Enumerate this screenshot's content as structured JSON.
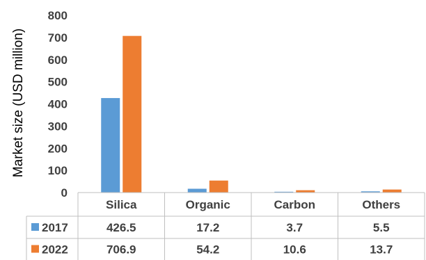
{
  "chart_data": {
    "type": "bar",
    "categories": [
      "Silica",
      "Organic",
      "Carbon",
      "Others"
    ],
    "series": [
      {
        "name": "2017",
        "values": [
          426.5,
          17.2,
          3.7,
          5.5
        ],
        "color": "#5B9BD5"
      },
      {
        "name": "2022",
        "values": [
          706.9,
          54.2,
          10.6,
          13.7
        ],
        "color": "#ED7D31"
      }
    ],
    "y_ticks": [
      "0",
      "100",
      "200",
      "300",
      "400",
      "500",
      "600",
      "700",
      "800"
    ],
    "ylabel": "Market size (USD million)",
    "ylim": [
      0,
      800
    ],
    "table_values": [
      [
        "426.5",
        "17.2",
        "3.7",
        "5.5"
      ],
      [
        "706.9",
        "54.2",
        "10.6",
        "13.7"
      ]
    ],
    "grid": false,
    "legend": "data table below chart"
  }
}
